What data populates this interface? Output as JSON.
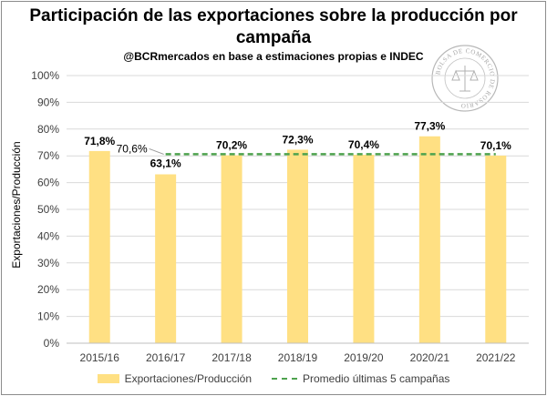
{
  "chart_data": {
    "type": "bar",
    "title": "Participación de las exportaciones sobre la producción por campaña",
    "subtitle": "@BCRmercados en base a estimaciones propias e INDEC",
    "xlabel": "",
    "ylabel": "Exportaciones/Producción",
    "ylim": [
      0,
      100
    ],
    "yticks": [
      "0%",
      "10%",
      "20%",
      "30%",
      "40%",
      "50%",
      "60%",
      "70%",
      "80%",
      "90%",
      "100%"
    ],
    "categories": [
      "2015/16",
      "2016/17",
      "2017/18",
      "2018/19",
      "2019/20",
      "2020/21",
      "2021/22"
    ],
    "series": [
      {
        "name": "Exportaciones/Producción",
        "values": [
          71.8,
          63.1,
          70.2,
          72.3,
          70.4,
          77.3,
          70.1
        ],
        "labels": [
          "71,8%",
          "63,1%",
          "70,2%",
          "72,3%",
          "70,4%",
          "77,3%",
          "70,1%"
        ],
        "color": "#ffe083"
      },
      {
        "name": "Promedio últimas 5 campañas",
        "value": 70.6,
        "label": "70,6%",
        "color": "#4ea24e",
        "style": "dashed"
      }
    ],
    "legend": "bottom",
    "grid": true
  },
  "seal": {
    "text": "BOLSA DE COMERCIO DE ROSARIO"
  }
}
